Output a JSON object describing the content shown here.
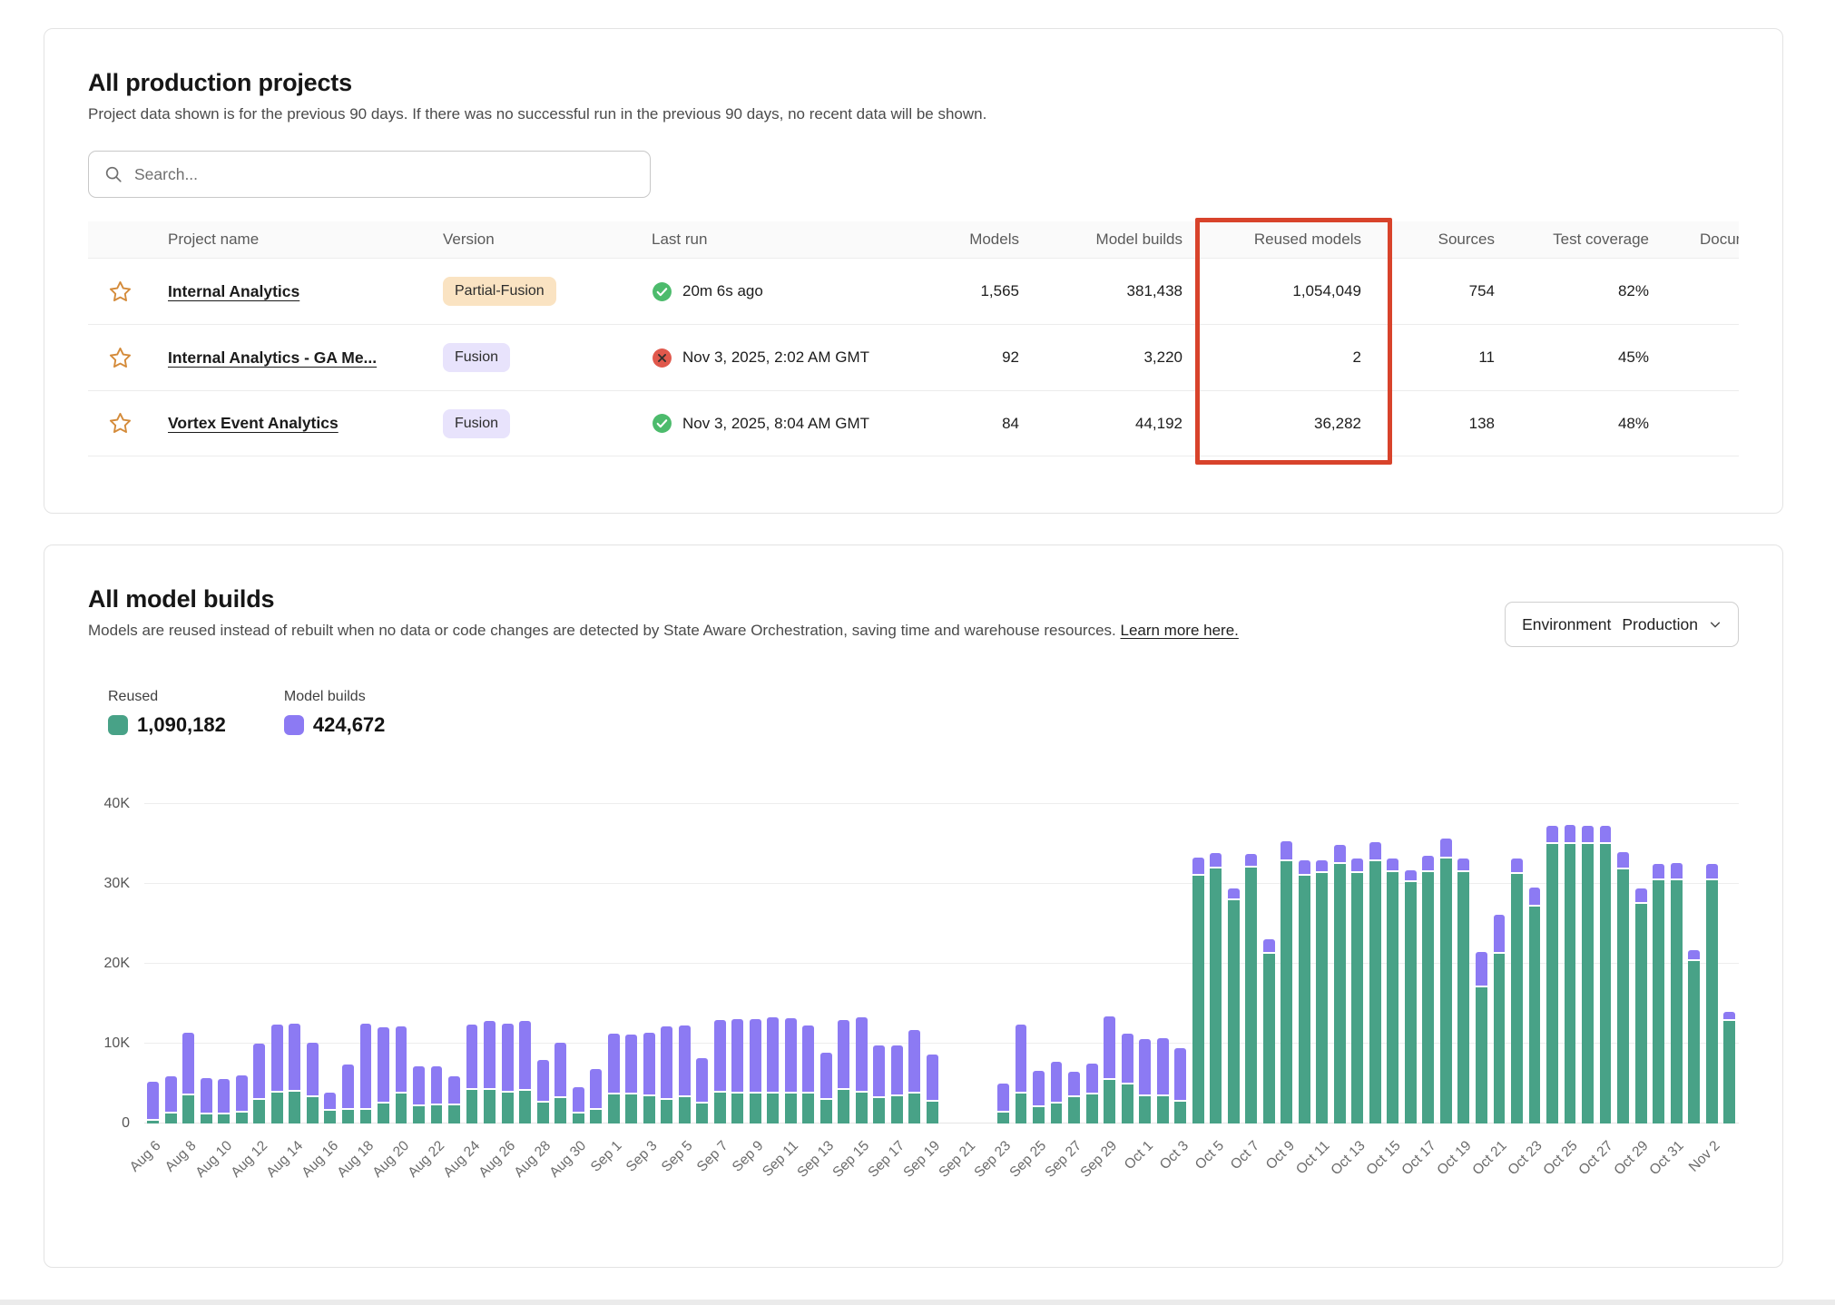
{
  "projects_card": {
    "title": "All production projects",
    "description": "Project data shown is for the previous 90 days. If there was no successful run in the previous 90 days, no recent data will be shown.",
    "search": {
      "placeholder": "Search..."
    },
    "columns": [
      "",
      "Project name",
      "Version",
      "Last run",
      "Models",
      "Model builds",
      "Reused models",
      "Sources",
      "Test coverage",
      "Documentation coverage"
    ],
    "highlight_color": "#d8432b",
    "rows": [
      {
        "name": "Internal Analytics",
        "version": "Partial-Fusion",
        "version_style": "partial",
        "status": "success",
        "last_run": "20m 6s ago",
        "models": "1,565",
        "model_builds": "381,438",
        "reused_models": "1,054,049",
        "sources": "754",
        "test_coverage": "82%"
      },
      {
        "name": "Internal Analytics - GA Me...",
        "version": "Fusion",
        "version_style": "fusion",
        "status": "error",
        "last_run": "Nov 3, 2025, 2:02 AM GMT",
        "models": "92",
        "model_builds": "3,220",
        "reused_models": "2",
        "sources": "11",
        "test_coverage": "45%"
      },
      {
        "name": "Vortex Event Analytics",
        "version": "Fusion",
        "version_style": "fusion",
        "status": "success",
        "last_run": "Nov 3, 2025, 8:04 AM GMT",
        "models": "84",
        "model_builds": "44,192",
        "reused_models": "36,282",
        "sources": "138",
        "test_coverage": "48%"
      }
    ]
  },
  "builds_card": {
    "title": "All model builds",
    "description": "Models are reused instead of rebuilt when no data or code changes are detected by State Aware Orchestration, saving time and warehouse resources.",
    "link_text": "Learn more here.",
    "env_filter": {
      "label": "Environment",
      "value": "Production"
    },
    "legend": [
      {
        "label": "Reused",
        "value": "1,090,182",
        "color": "#48a287"
      },
      {
        "label": "Model builds",
        "value": "424,672",
        "color": "#8c7af3"
      }
    ]
  },
  "chart_data": {
    "type": "bar",
    "stacked": true,
    "grid": true,
    "legend_position": "top-left",
    "xlabel": "",
    "ylabel": "",
    "ylim": [
      0,
      40000
    ],
    "yticks": [
      {
        "value": 0,
        "label": "0"
      },
      {
        "value": 10000,
        "label": "10K"
      },
      {
        "value": 20000,
        "label": "20K"
      },
      {
        "value": 30000,
        "label": "30K"
      },
      {
        "value": 40000,
        "label": "40K"
      }
    ],
    "series_names": [
      "Reused",
      "Model builds"
    ],
    "days": [
      {
        "label": "Aug 6",
        "reused": 300,
        "builds": 4700
      },
      {
        "label": "",
        "reused": 1200,
        "builds": 4500
      },
      {
        "label": "Aug 8",
        "reused": 3500,
        "builds": 7600
      },
      {
        "label": "",
        "reused": 1100,
        "builds": 4400
      },
      {
        "label": "Aug 10",
        "reused": 1100,
        "builds": 4300
      },
      {
        "label": "",
        "reused": 1400,
        "builds": 4400
      },
      {
        "label": "Aug 12",
        "reused": 3000,
        "builds": 6800
      },
      {
        "label": "",
        "reused": 3900,
        "builds": 8300
      },
      {
        "label": "Aug 14",
        "reused": 4000,
        "builds": 8300
      },
      {
        "label": "",
        "reused": 3300,
        "builds": 6600
      },
      {
        "label": "Aug 16",
        "reused": 1600,
        "builds": 2000
      },
      {
        "label": "",
        "reused": 1700,
        "builds": 5500
      },
      {
        "label": "Aug 18",
        "reused": 1700,
        "builds": 10600
      },
      {
        "label": "",
        "reused": 2500,
        "builds": 9300
      },
      {
        "label": "Aug 20",
        "reused": 3800,
        "builds": 8100
      },
      {
        "label": "",
        "reused": 2200,
        "builds": 4700
      },
      {
        "label": "Aug 22",
        "reused": 2300,
        "builds": 4600
      },
      {
        "label": "",
        "reused": 2300,
        "builds": 3400
      },
      {
        "label": "Aug 24",
        "reused": 4200,
        "builds": 8000
      },
      {
        "label": "",
        "reused": 4200,
        "builds": 8400
      },
      {
        "label": "Aug 26",
        "reused": 3900,
        "builds": 8400
      },
      {
        "label": "",
        "reused": 4100,
        "builds": 8500
      },
      {
        "label": "Aug 28",
        "reused": 2600,
        "builds": 5100
      },
      {
        "label": "",
        "reused": 3200,
        "builds": 6700
      },
      {
        "label": "Aug 30",
        "reused": 1200,
        "builds": 3100
      },
      {
        "label": "",
        "reused": 1700,
        "builds": 4900
      },
      {
        "label": "Sep 1",
        "reused": 3600,
        "builds": 7400
      },
      {
        "label": "",
        "reused": 3600,
        "builds": 7300
      },
      {
        "label": "Sep 3",
        "reused": 3400,
        "builds": 7700
      },
      {
        "label": "",
        "reused": 3000,
        "builds": 8900
      },
      {
        "label": "Sep 5",
        "reused": 3300,
        "builds": 8700
      },
      {
        "label": "",
        "reused": 2500,
        "builds": 5400
      },
      {
        "label": "Sep 7",
        "reused": 3900,
        "builds": 8800
      },
      {
        "label": "",
        "reused": 3800,
        "builds": 9000
      },
      {
        "label": "Sep 9",
        "reused": 3700,
        "builds": 9200
      },
      {
        "label": "",
        "reused": 3800,
        "builds": 9300
      },
      {
        "label": "Sep 11",
        "reused": 3800,
        "builds": 9200
      },
      {
        "label": "",
        "reused": 3700,
        "builds": 8400
      },
      {
        "label": "Sep 13",
        "reused": 3000,
        "builds": 5600
      },
      {
        "label": "",
        "reused": 4200,
        "builds": 8500
      },
      {
        "label": "Sep 15",
        "reused": 3900,
        "builds": 9200
      },
      {
        "label": "",
        "reused": 3200,
        "builds": 6300
      },
      {
        "label": "Sep 17",
        "reused": 3400,
        "builds": 6200
      },
      {
        "label": "",
        "reused": 3700,
        "builds": 7800
      },
      {
        "label": "Sep 19",
        "reused": 2700,
        "builds": 5700
      },
      {
        "label": "",
        "reused": 0,
        "builds": 0
      },
      {
        "label": "Sep 21",
        "reused": 0,
        "builds": 0
      },
      {
        "label": "",
        "reused": 0,
        "builds": 0
      },
      {
        "label": "Sep 23",
        "reused": 1400,
        "builds": 3400
      },
      {
        "label": "",
        "reused": 3800,
        "builds": 8400
      },
      {
        "label": "Sep 25",
        "reused": 2000,
        "builds": 4400
      },
      {
        "label": "",
        "reused": 2500,
        "builds": 5000
      },
      {
        "label": "Sep 27",
        "reused": 3300,
        "builds": 3000
      },
      {
        "label": "",
        "reused": 3600,
        "builds": 3700
      },
      {
        "label": "Sep 29",
        "reused": 5500,
        "builds": 7700
      },
      {
        "label": "",
        "reused": 4900,
        "builds": 6100
      },
      {
        "label": "Oct 1",
        "reused": 3400,
        "builds": 6900
      },
      {
        "label": "",
        "reused": 3400,
        "builds": 7100
      },
      {
        "label": "Oct 3",
        "reused": 2700,
        "builds": 6500
      },
      {
        "label": "",
        "reused": 31000,
        "builds": 2100
      },
      {
        "label": "Oct 5",
        "reused": 31900,
        "builds": 1700
      },
      {
        "label": "",
        "reused": 27900,
        "builds": 1300
      },
      {
        "label": "Oct 7",
        "reused": 32000,
        "builds": 1500
      },
      {
        "label": "",
        "reused": 21300,
        "builds": 1500
      },
      {
        "label": "Oct 9",
        "reused": 32800,
        "builds": 2300
      },
      {
        "label": "",
        "reused": 31000,
        "builds": 1700
      },
      {
        "label": "Oct 11",
        "reused": 31400,
        "builds": 1300
      },
      {
        "label": "",
        "reused": 32500,
        "builds": 2200
      },
      {
        "label": "Oct 13",
        "reused": 31400,
        "builds": 1600
      },
      {
        "label": "",
        "reused": 32800,
        "builds": 2200
      },
      {
        "label": "Oct 15",
        "reused": 31500,
        "builds": 1500
      },
      {
        "label": "",
        "reused": 30200,
        "builds": 1300
      },
      {
        "label": "Oct 17",
        "reused": 31500,
        "builds": 1800
      },
      {
        "label": "",
        "reused": 33200,
        "builds": 2300
      },
      {
        "label": "Oct 19",
        "reused": 31500,
        "builds": 1500
      },
      {
        "label": "",
        "reused": 17100,
        "builds": 4200
      },
      {
        "label": "Oct 21",
        "reused": 21200,
        "builds": 4700
      },
      {
        "label": "",
        "reused": 31200,
        "builds": 1800
      },
      {
        "label": "Oct 23",
        "reused": 27200,
        "builds": 2100
      },
      {
        "label": "",
        "reused": 35000,
        "builds": 2000
      },
      {
        "label": "Oct 25",
        "reused": 35000,
        "builds": 2200
      },
      {
        "label": "",
        "reused": 35000,
        "builds": 2100
      },
      {
        "label": "Oct 27",
        "reused": 35000,
        "builds": 2000
      },
      {
        "label": "",
        "reused": 31800,
        "builds": 1900
      },
      {
        "label": "Oct 29",
        "reused": 27500,
        "builds": 1700
      },
      {
        "label": "",
        "reused": 30500,
        "builds": 1800
      },
      {
        "label": "Oct 31",
        "reused": 30500,
        "builds": 1900
      },
      {
        "label": "",
        "reused": 20300,
        "builds": 1200
      },
      {
        "label": "Nov 2",
        "reused": 30500,
        "builds": 1800
      },
      {
        "label": "",
        "reused": 12800,
        "builds": 900
      }
    ]
  }
}
